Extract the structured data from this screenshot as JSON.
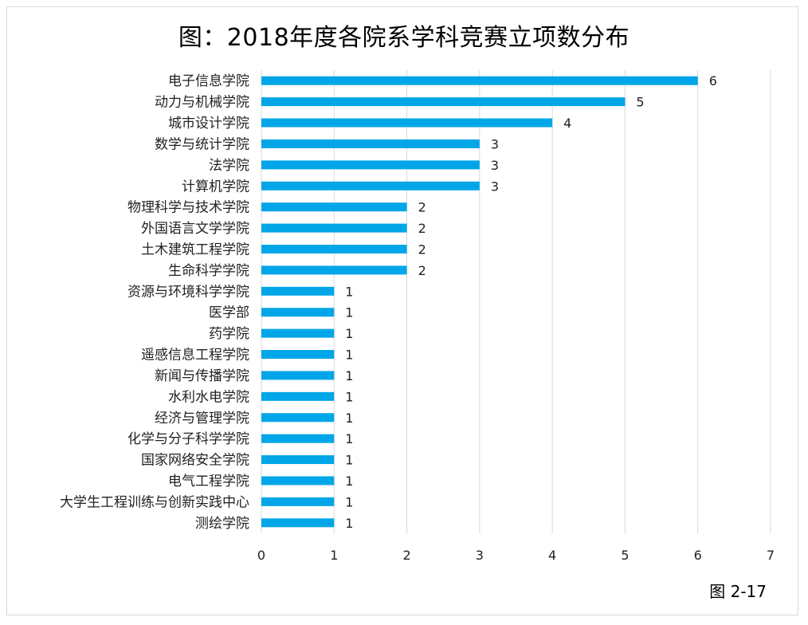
{
  "chart_data": {
    "type": "bar",
    "orientation": "horizontal",
    "title": "图：2018年度各院系学科竞赛立项数分布",
    "categories": [
      "电子信息学院",
      "动力与机械学院",
      "城市设计学院",
      "数学与统计学院",
      "法学院",
      "计算机学院",
      "物理科学与技术学院",
      "外国语言文学学院",
      "土木建筑工程学院",
      "生命科学学院",
      "资源与环境科学学院",
      "医学部",
      "药学院",
      "遥感信息工程学院",
      "新闻与传播学院",
      "水利水电学院",
      "经济与管理学院",
      "化学与分子科学学院",
      "国家网络安全学院",
      "电气工程学院",
      "大学生工程训练与创新实践中心",
      "测绘学院"
    ],
    "values": [
      6,
      5,
      4,
      3,
      3,
      3,
      2,
      2,
      2,
      2,
      1,
      1,
      1,
      1,
      1,
      1,
      1,
      1,
      1,
      1,
      1,
      1
    ],
    "xlim": [
      0,
      7
    ],
    "xticks": [
      0,
      1,
      2,
      3,
      4,
      5,
      6,
      7
    ],
    "grid": true,
    "legend": "none",
    "bar_color": "#00a6e8",
    "xlabel": "",
    "ylabel": ""
  },
  "footnote": "图 2-17"
}
